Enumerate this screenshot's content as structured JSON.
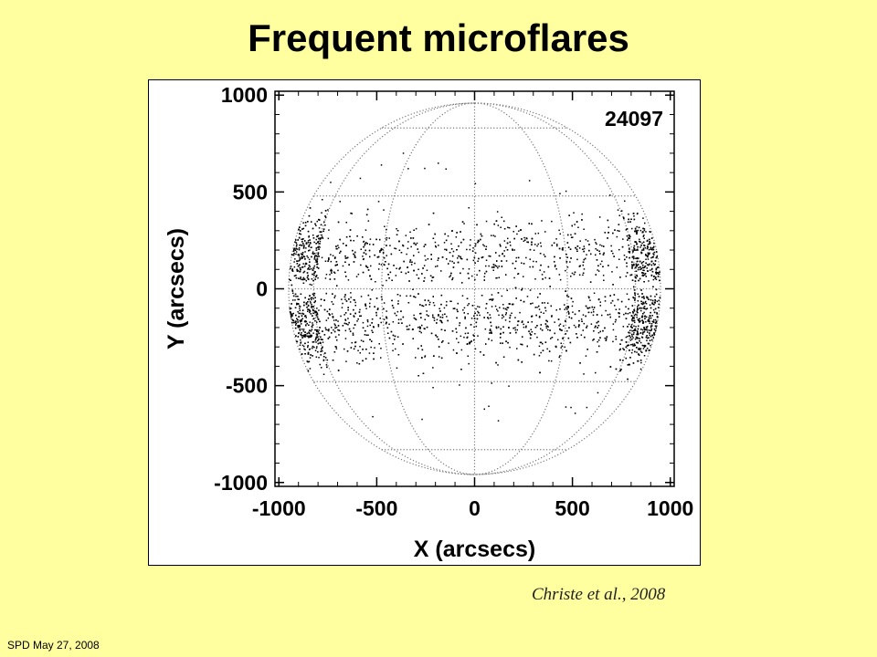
{
  "slide": {
    "title": "Frequent microflares",
    "citation": "Christe et al., 2008",
    "footer": "SPD May 27,  2008"
  },
  "chart_data": {
    "type": "scatter",
    "count_label": "24097",
    "xlabel": "X (arcsecs)",
    "ylabel": "Y (arcsecs)",
    "xlim": [
      -1020,
      1020
    ],
    "ylim": [
      -1020,
      1020
    ],
    "x_ticks": [
      -1000,
      -500,
      0,
      500,
      1000
    ],
    "y_ticks": [
      -1000,
      -500,
      0,
      500,
      1000
    ],
    "x_tick_labels": [
      "-1000",
      "-500",
      "0",
      "500",
      "1000"
    ],
    "y_tick_labels": [
      "-1000",
      "-500",
      "0",
      "500",
      "1000"
    ],
    "solar_radius": 950,
    "heliographic_grid": "dotted",
    "grid": false,
    "point_color": "#000000",
    "grid_color": "#777777",
    "activity_bands_y": [
      [
        -480,
        -20
      ],
      [
        40,
        420
      ]
    ],
    "band_density_peaks_y": [
      -160,
      160
    ]
  }
}
